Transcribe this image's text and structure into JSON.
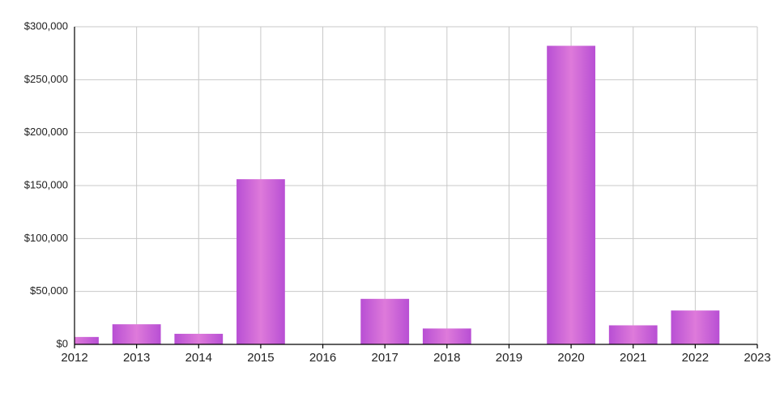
{
  "chart_data": {
    "type": "bar",
    "x": [
      2012,
      2013,
      2014,
      2015,
      2017,
      2018,
      2020,
      2021,
      2022
    ],
    "values": [
      7000,
      19000,
      10000,
      156000,
      43000,
      15000,
      282000,
      18000,
      32000
    ],
    "color": "#b84fd4",
    "xlim": [
      2012,
      2023
    ],
    "xticks": [
      2012,
      2013,
      2014,
      2015,
      2016,
      2017,
      2018,
      2019,
      2020,
      2021,
      2022,
      2023
    ],
    "ylim": [
      0,
      300000
    ],
    "yticks": [
      {
        "value": 0,
        "label": "$0"
      },
      {
        "value": 50000,
        "label": "$50,000"
      },
      {
        "value": 100000,
        "label": "$100,000"
      },
      {
        "value": 150000,
        "label": "$150,000"
      },
      {
        "value": 200000,
        "label": "$200,000"
      },
      {
        "value": 250000,
        "label": "$250,000"
      },
      {
        "value": 300000,
        "label": "$300,000"
      }
    ],
    "grid": true
  }
}
